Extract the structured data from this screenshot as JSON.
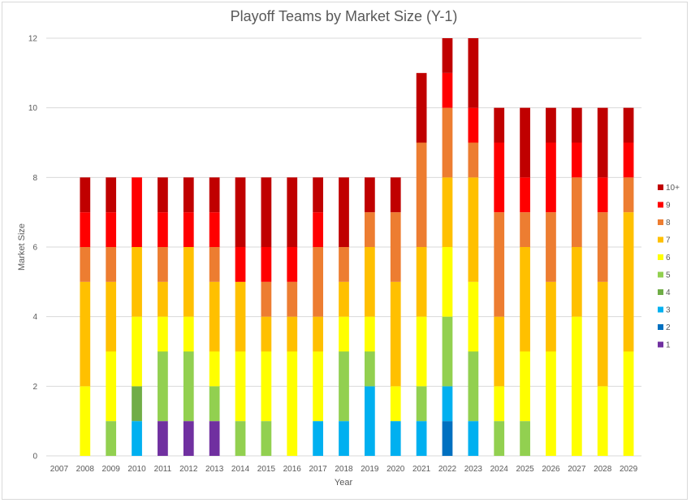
{
  "chart_data": {
    "type": "bar",
    "stacked": true,
    "title": "Playoff Teams by Market Size (Y-1)",
    "xlabel": "Year",
    "ylabel": "Market Size",
    "ylim": [
      0,
      12
    ],
    "yticks": [
      0,
      2,
      4,
      6,
      8,
      10,
      12
    ],
    "grid": true,
    "legend_position": "right",
    "categories": [
      "2007",
      "2008",
      "2009",
      "2010",
      "2011",
      "2012",
      "2013",
      "2014",
      "2015",
      "2016",
      "2017",
      "2018",
      "2019",
      "2020",
      "2021",
      "2022",
      "2023",
      "2024",
      "2025",
      "2026",
      "2027",
      "2028",
      "2029"
    ],
    "series": [
      {
        "name": "1",
        "color": "#7030a0",
        "values": [
          0,
          0,
          0,
          0,
          1,
          1,
          1,
          0,
          0,
          0,
          0,
          0,
          0,
          0,
          0,
          0,
          0,
          0,
          0,
          0,
          0,
          0,
          0
        ]
      },
      {
        "name": "2",
        "color": "#0070c0",
        "values": [
          0,
          0,
          0,
          0,
          0,
          0,
          0,
          0,
          0,
          0,
          0,
          0,
          0,
          0,
          0,
          1,
          0,
          0,
          0,
          0,
          0,
          0,
          0
        ]
      },
      {
        "name": "3",
        "color": "#00b0f0",
        "values": [
          0,
          0,
          0,
          1,
          0,
          0,
          0,
          0,
          0,
          0,
          1,
          1,
          2,
          1,
          1,
          1,
          1,
          0,
          0,
          0,
          0,
          0,
          0
        ]
      },
      {
        "name": "4",
        "color": "#70ad47",
        "values": [
          0,
          0,
          0,
          1,
          0,
          0,
          0,
          0,
          0,
          0,
          0,
          0,
          0,
          0,
          0,
          0,
          0,
          0,
          0,
          0,
          0,
          0,
          0
        ]
      },
      {
        "name": "5",
        "color": "#92d050",
        "values": [
          0,
          0,
          1,
          0,
          2,
          2,
          1,
          1,
          1,
          0,
          0,
          2,
          1,
          0,
          1,
          2,
          2,
          1,
          1,
          0,
          0,
          0,
          0
        ]
      },
      {
        "name": "6",
        "color": "#ffff00",
        "values": [
          0,
          2,
          2,
          2,
          1,
          1,
          1,
          2,
          2,
          3,
          2,
          1,
          1,
          1,
          2,
          2,
          2,
          1,
          2,
          3,
          4,
          2,
          3
        ]
      },
      {
        "name": "7",
        "color": "#ffc000",
        "values": [
          0,
          3,
          2,
          2,
          1,
          2,
          2,
          2,
          1,
          1,
          1,
          1,
          2,
          3,
          2,
          2,
          3,
          2,
          3,
          2,
          2,
          3,
          4
        ]
      },
      {
        "name": "8",
        "color": "#ed7d31",
        "values": [
          0,
          1,
          1,
          0,
          1,
          0,
          1,
          0,
          1,
          1,
          2,
          1,
          1,
          2,
          3,
          2,
          1,
          3,
          1,
          2,
          2,
          2,
          1
        ]
      },
      {
        "name": "9",
        "color": "#ff0000",
        "values": [
          0,
          1,
          1,
          2,
          1,
          1,
          1,
          1,
          1,
          1,
          1,
          0,
          0,
          0,
          0,
          1,
          1,
          2,
          1,
          2,
          1,
          1,
          1
        ]
      },
      {
        "name": "10+",
        "color": "#c00000",
        "values": [
          0,
          1,
          1,
          0,
          1,
          1,
          1,
          2,
          2,
          2,
          1,
          2,
          1,
          1,
          2,
          1,
          2,
          1,
          2,
          1,
          1,
          2,
          1
        ]
      }
    ]
  }
}
